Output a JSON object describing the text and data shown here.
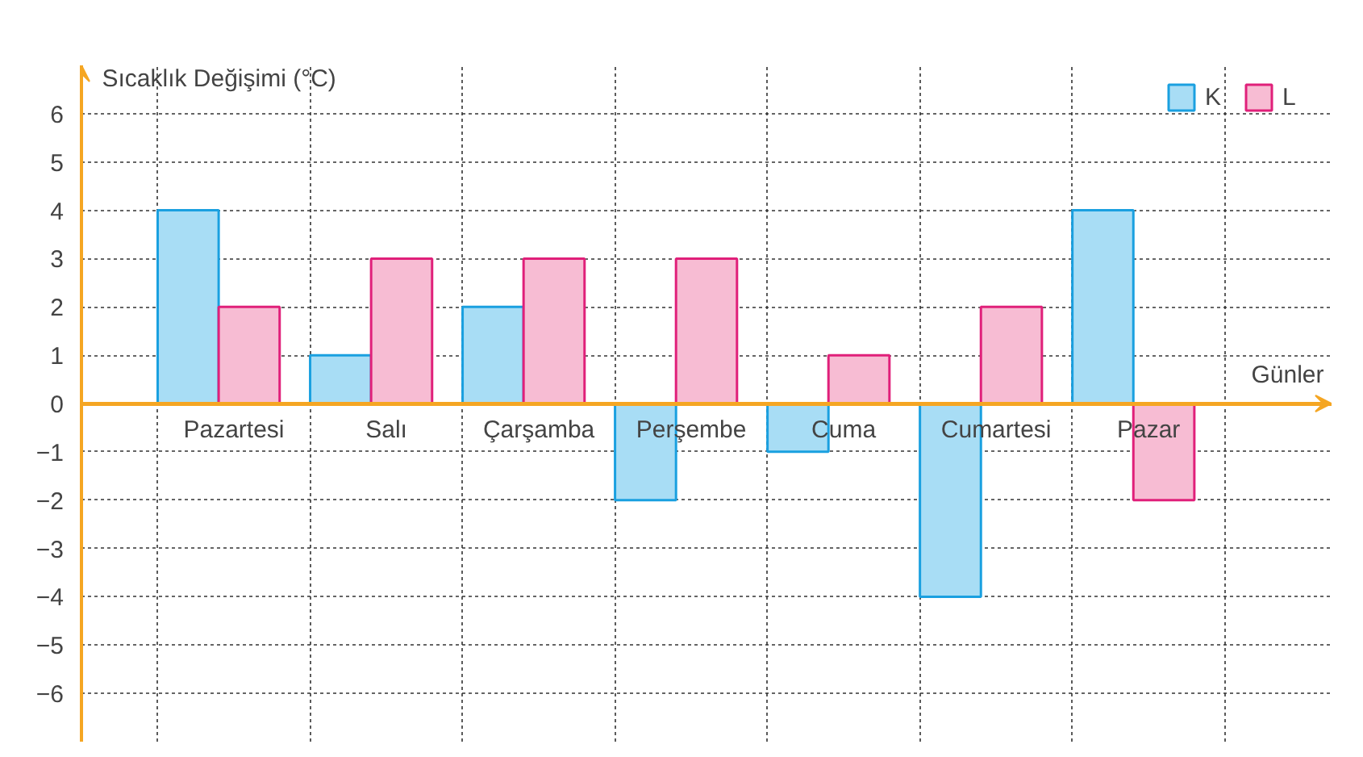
{
  "chart_data": {
    "type": "bar",
    "ylabel": "Sıcaklık Değişimi (°C)",
    "xlabel": "Günler",
    "categories": [
      "Pazartesi",
      "Salı",
      "Çarşamba",
      "Perşembe",
      "Cuma",
      "Cumartesi",
      "Pazar"
    ],
    "series": [
      {
        "name": "K",
        "color": "#a8ddf5",
        "values": [
          4,
          1,
          2,
          -2,
          -1,
          -4,
          4
        ]
      },
      {
        "name": "L",
        "color": "#f7bcd3",
        "values": [
          2,
          3,
          3,
          3,
          1,
          2,
          -2
        ]
      }
    ],
    "ylim": [
      -7,
      7
    ],
    "yticks": [
      -6,
      -5,
      -4,
      -3,
      -2,
      -1,
      0,
      1,
      2,
      3,
      4,
      5,
      6
    ],
    "grid": true,
    "legend": "right"
  }
}
